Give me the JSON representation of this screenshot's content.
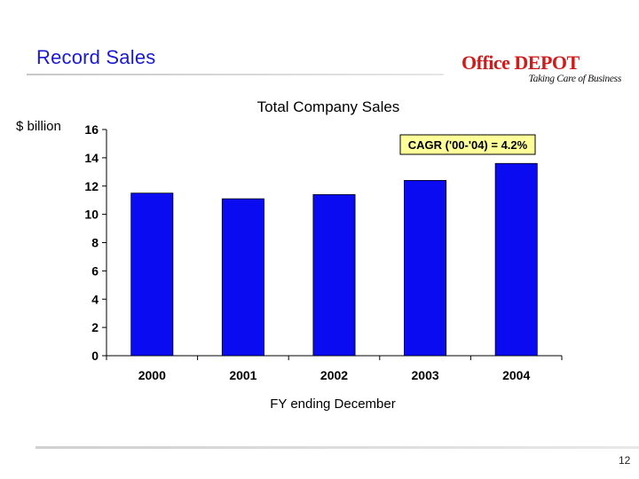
{
  "slide": {
    "title": "Record Sales",
    "page_number": "12"
  },
  "logo": {
    "brand": "Office DEPOT",
    "tagline": "Taking Care of Business"
  },
  "chart_data": {
    "type": "bar",
    "title": "Total Company Sales",
    "ylabel": "$ billion",
    "xlabel": "FY ending December",
    "categories": [
      "2000",
      "2001",
      "2002",
      "2003",
      "2004"
    ],
    "values": [
      11.5,
      11.1,
      11.4,
      12.4,
      13.6
    ],
    "ylim": [
      0,
      16
    ],
    "yticks": [
      0,
      2,
      4,
      6,
      8,
      10,
      12,
      14,
      16
    ],
    "grid": false,
    "bar_color": "#0b0bf2",
    "annotation": "CAGR ('00-'04) = 4.2%",
    "annotation_bg": "#ffff99"
  }
}
